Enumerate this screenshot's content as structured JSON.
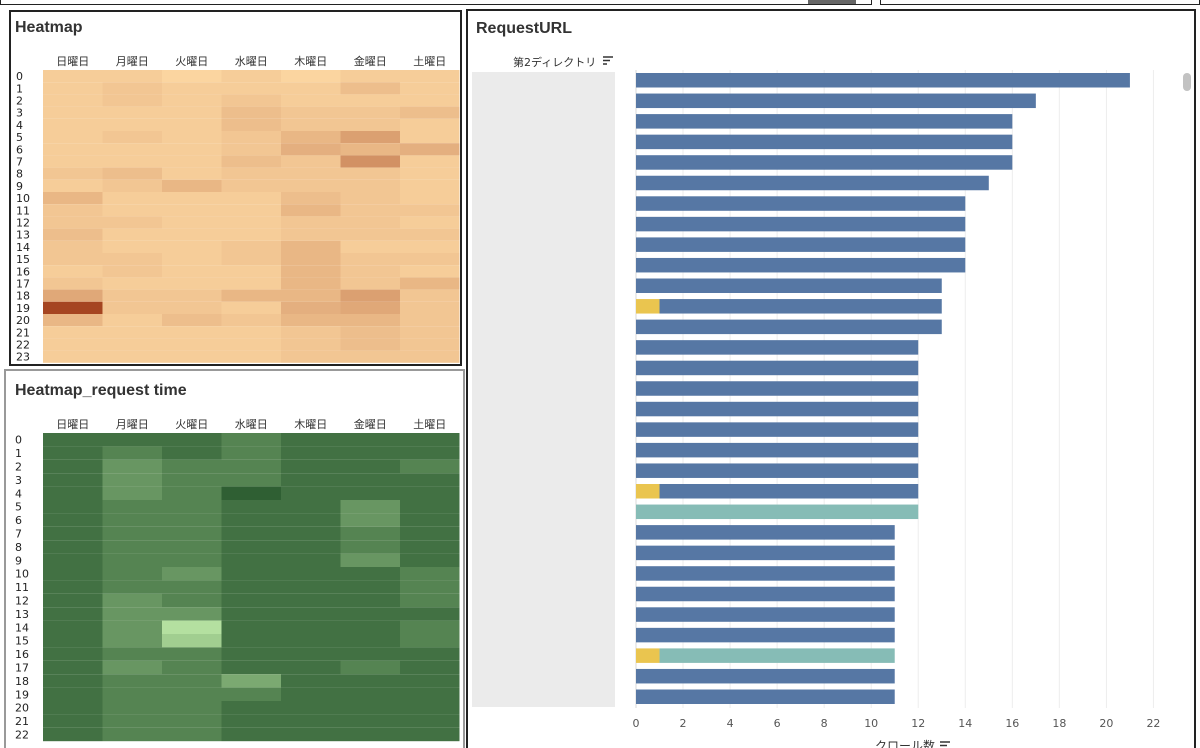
{
  "panels": {
    "heatmap_title": "Heatmap",
    "heatmap2_title": "Heatmap_request time",
    "request_title": "RequestURL",
    "column_header": "第2ディレクトリ",
    "xlabel": "クロール数"
  },
  "chart_data": [
    {
      "type": "heatmap",
      "title": "Heatmap",
      "x": [
        "日曜日",
        "月曜日",
        "火曜日",
        "水曜日",
        "木曜日",
        "金曜日",
        "土曜日"
      ],
      "y": [
        0,
        1,
        2,
        3,
        4,
        5,
        6,
        7,
        8,
        9,
        10,
        11,
        12,
        13,
        14,
        15,
        16,
        17,
        18,
        19,
        20,
        21,
        22,
        23
      ],
      "color_scale": [
        "#fbd5a0",
        "#a54521"
      ],
      "values": [
        [
          2,
          2,
          1,
          2,
          1,
          2,
          2
        ],
        [
          2,
          3,
          2,
          2,
          2,
          4,
          2
        ],
        [
          2,
          3,
          2,
          3,
          2,
          2,
          2
        ],
        [
          2,
          2,
          2,
          4,
          3,
          3,
          4
        ],
        [
          2,
          2,
          2,
          4,
          3,
          3,
          2
        ],
        [
          2,
          3,
          2,
          3,
          5,
          8,
          2
        ],
        [
          2,
          2,
          2,
          3,
          6,
          5,
          6
        ],
        [
          2,
          2,
          2,
          4,
          3,
          10,
          2
        ],
        [
          3,
          4,
          2,
          3,
          3,
          3,
          2
        ],
        [
          2,
          3,
          5,
          3,
          3,
          3,
          2
        ],
        [
          5,
          2,
          2,
          2,
          4,
          3,
          2
        ],
        [
          3,
          2,
          2,
          2,
          5,
          3,
          3
        ],
        [
          3,
          3,
          2,
          2,
          3,
          3,
          2
        ],
        [
          4,
          2,
          2,
          2,
          3,
          3,
          3
        ],
        [
          3,
          2,
          2,
          3,
          5,
          2,
          2
        ],
        [
          3,
          3,
          2,
          3,
          5,
          3,
          3
        ],
        [
          2,
          3,
          2,
          2,
          5,
          3,
          2
        ],
        [
          3,
          2,
          2,
          2,
          5,
          3,
          5
        ],
        [
          7,
          3,
          3,
          5,
          5,
          8,
          3
        ],
        [
          20,
          3,
          3,
          2,
          6,
          7,
          3
        ],
        [
          5,
          2,
          4,
          3,
          5,
          5,
          3
        ],
        [
          2,
          2,
          2,
          2,
          3,
          4,
          3
        ],
        [
          2,
          2,
          2,
          2,
          3,
          4,
          3
        ],
        [
          2,
          2,
          2,
          2,
          3,
          3,
          3
        ]
      ]
    },
    {
      "type": "heatmap",
      "title": "Heatmap_request time",
      "x": [
        "日曜日",
        "月曜日",
        "火曜日",
        "水曜日",
        "木曜日",
        "金曜日",
        "土曜日"
      ],
      "y": [
        0,
        1,
        2,
        3,
        4,
        5,
        6,
        7,
        8,
        9,
        10,
        11,
        12,
        13,
        14,
        15,
        16,
        17,
        18,
        19,
        20,
        21,
        22
      ],
      "color_scale": [
        "#b4e0a0",
        "#2f5f33"
      ],
      "values": [
        [
          6,
          6,
          6,
          5,
          6,
          6,
          6
        ],
        [
          6,
          5,
          6,
          5,
          6,
          6,
          6
        ],
        [
          6,
          4,
          5,
          5,
          6,
          6,
          5
        ],
        [
          6,
          4,
          5,
          5,
          6,
          6,
          6
        ],
        [
          6,
          4,
          5,
          7,
          6,
          6,
          6
        ],
        [
          6,
          5,
          5,
          6,
          6,
          4,
          6
        ],
        [
          6,
          5,
          5,
          6,
          6,
          4,
          6
        ],
        [
          6,
          5,
          5,
          6,
          6,
          5,
          6
        ],
        [
          6,
          5,
          5,
          6,
          6,
          5,
          6
        ],
        [
          6,
          5,
          5,
          6,
          6,
          4,
          6
        ],
        [
          6,
          5,
          4,
          6,
          6,
          6,
          5
        ],
        [
          6,
          5,
          5,
          6,
          6,
          6,
          5
        ],
        [
          6,
          4,
          5,
          6,
          6,
          6,
          5
        ],
        [
          6,
          4,
          4,
          6,
          6,
          6,
          6
        ],
        [
          6,
          4,
          0,
          6,
          6,
          6,
          5
        ],
        [
          6,
          4,
          1,
          6,
          6,
          6,
          5
        ],
        [
          6,
          5,
          5,
          6,
          6,
          6,
          6
        ],
        [
          6,
          4,
          5,
          6,
          6,
          5,
          6
        ],
        [
          6,
          5,
          5,
          3,
          6,
          6,
          6
        ],
        [
          6,
          5,
          5,
          5,
          6,
          6,
          6
        ],
        [
          6,
          5,
          5,
          6,
          6,
          6,
          6
        ],
        [
          6,
          5,
          5,
          6,
          6,
          6,
          6
        ],
        [
          6,
          5,
          5,
          6,
          6,
          6,
          6
        ]
      ]
    },
    {
      "type": "bar",
      "orientation": "horizontal",
      "stacked": true,
      "title": "RequestURL",
      "xlabel": "クロール数",
      "xlim": [
        0,
        23
      ],
      "xticks": [
        0,
        2,
        4,
        6,
        8,
        10,
        12,
        14,
        16,
        18,
        20,
        22
      ],
      "grid": true,
      "series_colors": [
        "#eac54f",
        "#5677a4",
        "#86bcb6"
      ],
      "rows": [
        [
          [
            21,
            "#5677a4"
          ]
        ],
        [
          [
            17,
            "#5677a4"
          ]
        ],
        [
          [
            16,
            "#5677a4"
          ]
        ],
        [
          [
            16,
            "#5677a4"
          ]
        ],
        [
          [
            16,
            "#5677a4"
          ]
        ],
        [
          [
            15,
            "#5677a4"
          ]
        ],
        [
          [
            14,
            "#5677a4"
          ]
        ],
        [
          [
            14,
            "#5677a4"
          ]
        ],
        [
          [
            14,
            "#5677a4"
          ]
        ],
        [
          [
            14,
            "#5677a4"
          ]
        ],
        [
          [
            13,
            "#5677a4"
          ]
        ],
        [
          [
            1,
            "#eac54f"
          ],
          [
            12,
            "#5677a4"
          ]
        ],
        [
          [
            13,
            "#5677a4"
          ]
        ],
        [
          [
            12,
            "#5677a4"
          ]
        ],
        [
          [
            12,
            "#5677a4"
          ]
        ],
        [
          [
            12,
            "#5677a4"
          ]
        ],
        [
          [
            12,
            "#5677a4"
          ]
        ],
        [
          [
            12,
            "#5677a4"
          ]
        ],
        [
          [
            12,
            "#5677a4"
          ]
        ],
        [
          [
            12,
            "#5677a4"
          ]
        ],
        [
          [
            1,
            "#eac54f"
          ],
          [
            11,
            "#5677a4"
          ]
        ],
        [
          [
            12,
            "#86bcb6"
          ]
        ],
        [
          [
            11,
            "#5677a4"
          ]
        ],
        [
          [
            11,
            "#5677a4"
          ]
        ],
        [
          [
            11,
            "#5677a4"
          ]
        ],
        [
          [
            11,
            "#5677a4"
          ]
        ],
        [
          [
            11,
            "#5677a4"
          ]
        ],
        [
          [
            11,
            "#5677a4"
          ]
        ],
        [
          [
            1,
            "#eac54f"
          ],
          [
            10,
            "#86bcb6"
          ]
        ],
        [
          [
            11,
            "#5677a4"
          ]
        ],
        [
          [
            11,
            "#5677a4"
          ]
        ]
      ]
    }
  ]
}
